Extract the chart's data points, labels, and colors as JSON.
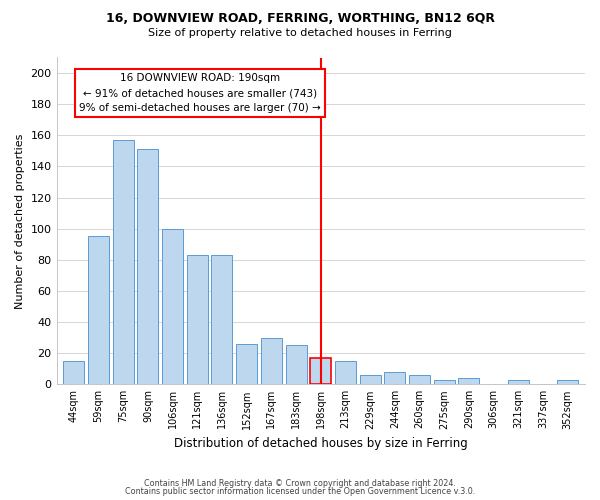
{
  "title1": "16, DOWNVIEW ROAD, FERRING, WORTHING, BN12 6QR",
  "title2": "Size of property relative to detached houses in Ferring",
  "xlabel": "Distribution of detached houses by size in Ferring",
  "ylabel": "Number of detached properties",
  "bar_labels": [
    "44sqm",
    "59sqm",
    "75sqm",
    "90sqm",
    "106sqm",
    "121sqm",
    "136sqm",
    "152sqm",
    "167sqm",
    "183sqm",
    "198sqm",
    "213sqm",
    "229sqm",
    "244sqm",
    "260sqm",
    "275sqm",
    "290sqm",
    "306sqm",
    "321sqm",
    "337sqm",
    "352sqm"
  ],
  "bar_values": [
    15,
    95,
    157,
    151,
    100,
    83,
    83,
    26,
    30,
    25,
    17,
    15,
    6,
    8,
    6,
    3,
    4,
    0,
    3,
    0,
    3
  ],
  "bar_color": "#bdd7ee",
  "bar_edge_color": "#5b9bd5",
  "highlight_bar_index": 10,
  "highlight_bar_edge_color": "#ff0000",
  "vline_x": 10,
  "vline_color": "#ff0000",
  "ylim": [
    0,
    210
  ],
  "yticks": [
    0,
    20,
    40,
    60,
    80,
    100,
    120,
    140,
    160,
    180,
    200
  ],
  "annotation_title": "16 DOWNVIEW ROAD: 190sqm",
  "annotation_line1": "← 91% of detached houses are smaller (743)",
  "annotation_line2": "9% of semi-detached houses are larger (70) →",
  "annotation_box_color": "#ffffff",
  "annotation_box_edge": "#ff0000",
  "footer1": "Contains HM Land Registry data © Crown copyright and database right 2024.",
  "footer2": "Contains public sector information licensed under the Open Government Licence v.3.0.",
  "bg_color": "#ffffff",
  "grid_color": "#d0d0d0"
}
